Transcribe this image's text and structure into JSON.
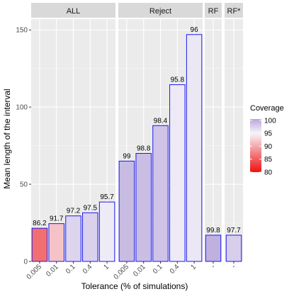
{
  "chart_data": {
    "type": "bar",
    "xlabel": "Tolerance (% of simulations)",
    "ylabel": "Mean length of the interval",
    "ylim": [
      0,
      157
    ],
    "y_ticks": [
      0,
      50,
      100,
      150
    ],
    "grid": true,
    "legend_position": "right",
    "bar_outline_color": "#1a1aee",
    "panels": [
      {
        "name": "ALL",
        "categories": [
          "0.005",
          "0.01",
          "0.1",
          "0.4",
          "1"
        ],
        "values": [
          21.5,
          24.5,
          29.5,
          31.5,
          38.5
        ],
        "coverage": [
          86.2,
          91.7,
          97.2,
          97.5,
          95.7
        ],
        "labels": [
          "86.2",
          "91.7",
          "97.2",
          "97.5",
          "95.7"
        ]
      },
      {
        "name": "Reject",
        "categories": [
          "0.005",
          "0.01",
          "0.1",
          "0.4",
          "1"
        ],
        "values": [
          65,
          70,
          88,
          114.5,
          147
        ],
        "coverage": [
          99,
          98.8,
          98.4,
          95.8,
          96
        ],
        "labels": [
          "99",
          "98.8",
          "98.4",
          "95.8",
          "96"
        ]
      },
      {
        "name": "RF",
        "categories": [
          "-"
        ],
        "values": [
          17
        ],
        "coverage": [
          99.8
        ],
        "labels": [
          "99.8"
        ]
      },
      {
        "name": "RF*",
        "categories": [
          "-"
        ],
        "values": [
          17
        ],
        "coverage": [
          97.7
        ],
        "labels": [
          "97.7"
        ]
      }
    ],
    "legend": {
      "title": "Coverage",
      "breaks": [
        "100",
        "95",
        "90",
        "85",
        "80"
      ],
      "break_values": [
        100,
        95,
        90,
        85,
        80
      ],
      "range": [
        80,
        100.5
      ],
      "color_low": "#ee1111",
      "color_mid": "#f7f5fa",
      "color_high": "#b7a6db",
      "midpoint": 95
    }
  }
}
